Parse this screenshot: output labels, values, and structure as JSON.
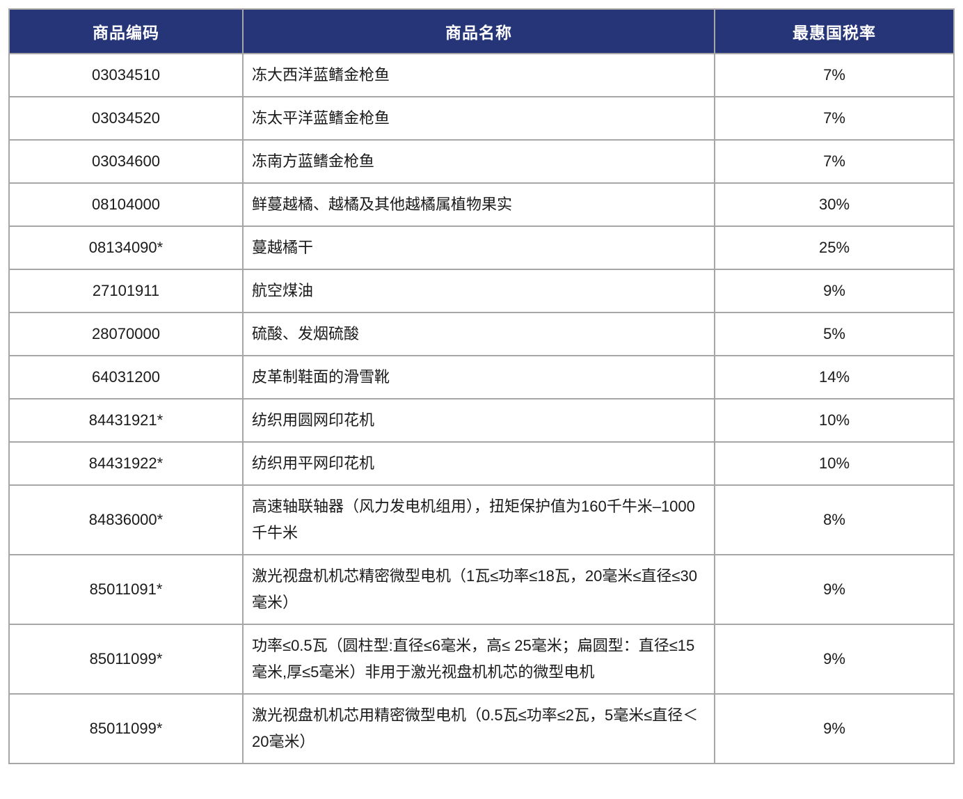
{
  "colors": {
    "header_bg": "#263478",
    "header_text": "#ffffff",
    "border": "#a6a6a6",
    "body_text": "#1a1a1a"
  },
  "table": {
    "columns": [
      {
        "key": "code",
        "label": "商品编码"
      },
      {
        "key": "name",
        "label": "商品名称"
      },
      {
        "key": "rate",
        "label": "最惠国税率"
      }
    ],
    "rows": [
      {
        "code": "03034510",
        "name": "冻大西洋蓝鳍金枪鱼",
        "rate": "7%"
      },
      {
        "code": "03034520",
        "name": "冻太平洋蓝鳍金枪鱼",
        "rate": "7%"
      },
      {
        "code": "03034600",
        "name": "冻南方蓝鳍金枪鱼",
        "rate": "7%"
      },
      {
        "code": "08104000",
        "name": "鲜蔓越橘、越橘及其他越橘属植物果实",
        "rate": "30%"
      },
      {
        "code": "08134090*",
        "name": "蔓越橘干",
        "rate": "25%"
      },
      {
        "code": "27101911",
        "name": "航空煤油",
        "rate": "9%"
      },
      {
        "code": "28070000",
        "name": "硫酸、发烟硫酸",
        "rate": "5%"
      },
      {
        "code": "64031200",
        "name": "皮革制鞋面的滑雪靴",
        "rate": "14%"
      },
      {
        "code": "84431921*",
        "name": "纺织用圆网印花机",
        "rate": "10%"
      },
      {
        "code": "84431922*",
        "name": "纺织用平网印花机",
        "rate": "10%"
      },
      {
        "code": "84836000*",
        "name": "高速轴联轴器（风力发电机组用），扭矩保护值为160千牛米–1000千牛米",
        "rate": "8%"
      },
      {
        "code": "85011091*",
        "name": "激光视盘机机芯精密微型电机（1瓦≤功率≤18瓦，20毫米≤直径≤30毫米）",
        "rate": "9%"
      },
      {
        "code": "85011099*",
        "name": "功率≤0.5瓦（圆柱型:直径≤6毫米，高≤ 25毫米；扁圆型：直径≤15毫米,厚≤5毫米）非用于激光视盘机机芯的微型电机",
        "rate": "9%"
      },
      {
        "code": "85011099*",
        "name": "激光视盘机机芯用精密微型电机（0.5瓦≤功率≤2瓦，5毫米≤直径＜20毫米）",
        "rate": "9%"
      }
    ]
  }
}
